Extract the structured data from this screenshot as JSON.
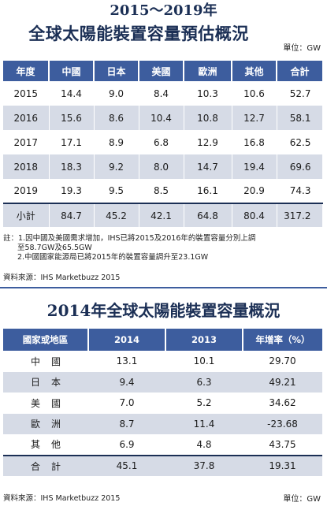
{
  "table1": {
    "title_line1": "2015～2019年",
    "title_line2": "全球太陽能裝置容量預估概況",
    "unit": "單位：GW",
    "headers": [
      "年度",
      "中國",
      "日本",
      "美國",
      "歐洲",
      "其他",
      "合計"
    ],
    "rows": [
      [
        "2015",
        "14.4",
        "9.0",
        "8.4",
        "10.3",
        "10.6",
        "52.7"
      ],
      [
        "2016",
        "15.6",
        "8.6",
        "10.4",
        "10.8",
        "12.7",
        "58.1"
      ],
      [
        "2017",
        "17.1",
        "8.9",
        "6.8",
        "12.9",
        "16.8",
        "62.5"
      ],
      [
        "2018",
        "18.3",
        "9.2",
        "8.0",
        "14.7",
        "19.4",
        "69.6"
      ],
      [
        "2019",
        "19.3",
        "9.5",
        "8.5",
        "16.1",
        "20.9",
        "74.3"
      ]
    ],
    "total": [
      "小計",
      "84.7",
      "45.2",
      "42.1",
      "64.8",
      "80.4",
      "317.2"
    ],
    "notes": [
      "註：1.因中國及美國需求增加，IHS已將2015及2016年的裝置容量分別上調",
      "至58.7GW及65.5GW",
      "2.中國國家能源局已將2015年的裝置容量調升至23.1GW"
    ],
    "source": "資料來源：IHS Marketbuzz  2015"
  },
  "table2": {
    "title": "2014年全球太陽能裝置容量概況",
    "headers": [
      "國家或地區",
      "2014",
      "2013",
      "年增率（%）"
    ],
    "rows": [
      [
        "中國",
        "13.1",
        "10.1",
        "29.70"
      ],
      [
        "日本",
        "9.4",
        "6.3",
        "49.21"
      ],
      [
        "美國",
        "7.0",
        "5.2",
        "34.62"
      ],
      [
        "歐洲",
        "8.7",
        "11.4",
        "-23.68"
      ],
      [
        "其他",
        "6.9",
        "4.8",
        "43.75"
      ]
    ],
    "total": [
      "合計",
      "45.1",
      "37.8",
      "19.31"
    ],
    "source": "資料來源：IHS Marketbuzz 2015",
    "unit": "單位：GW"
  }
}
